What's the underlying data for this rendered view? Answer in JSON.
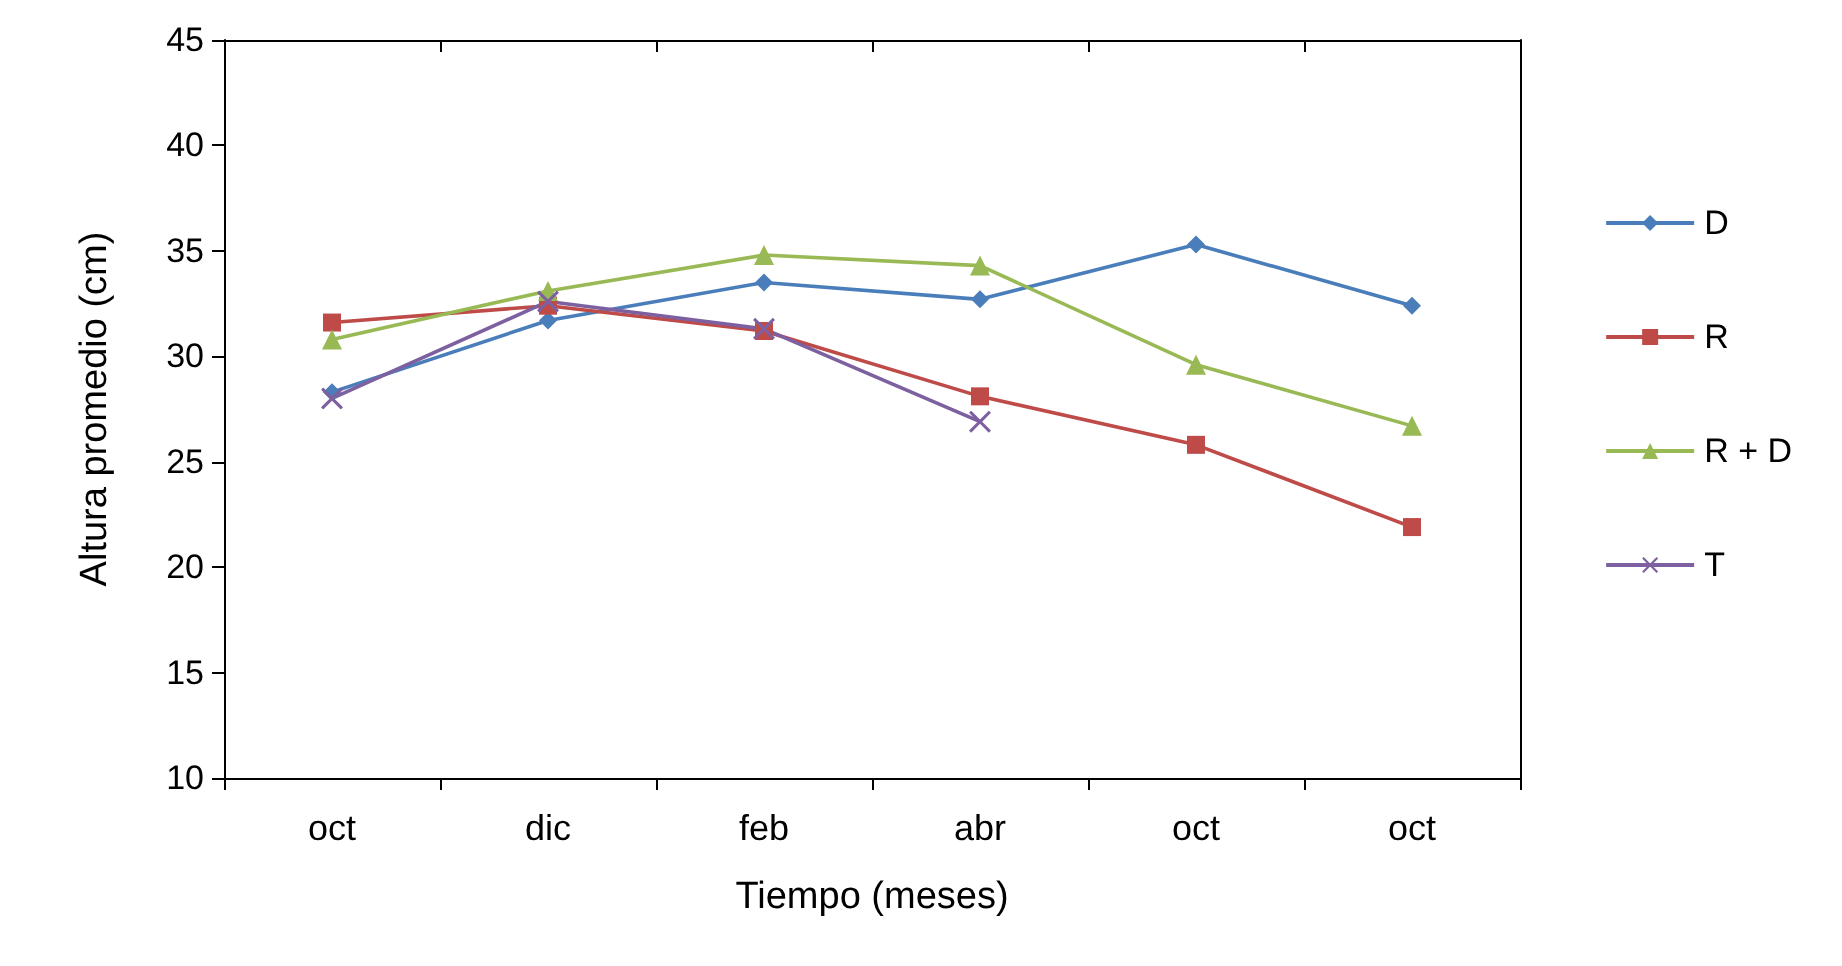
{
  "chart_data": {
    "type": "line",
    "xlabel": "Tiempo (meses)",
    "ylabel": "Altura promedio (cm)",
    "categories": [
      "oct",
      "dic",
      "feb",
      "abr",
      "oct",
      "oct"
    ],
    "series": [
      {
        "name": "D",
        "color": "#4a7ebb",
        "marker": "diamond",
        "values": [
          28.3,
          31.7,
          33.5,
          32.7,
          35.3,
          32.4
        ]
      },
      {
        "name": "R",
        "color": "#be4b48",
        "marker": "square",
        "values": [
          31.6,
          32.4,
          31.2,
          28.1,
          25.8,
          21.9
        ]
      },
      {
        "name": "R + D",
        "color": "#98b954",
        "marker": "triangle",
        "values": [
          30.8,
          33.1,
          34.8,
          34.3,
          29.6,
          26.7
        ]
      },
      {
        "name": "T",
        "color": "#7d60a0",
        "marker": "cross",
        "values": [
          28.0,
          32.6,
          31.3,
          26.9,
          null,
          null
        ]
      }
    ],
    "ylim": [
      10,
      45
    ],
    "yticks": [
      10,
      15,
      20,
      25,
      30,
      35,
      40,
      45
    ],
    "grid": false,
    "legend": "right"
  }
}
